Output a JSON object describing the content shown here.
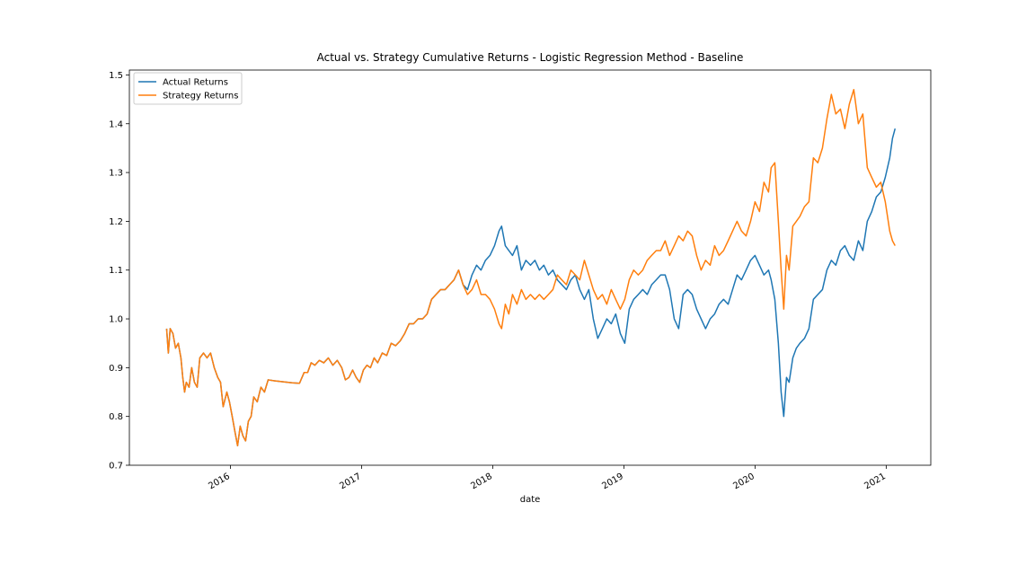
{
  "chart_data": {
    "type": "line",
    "title": "Actual vs. Strategy Cumulative Returns - Logistic Regression Method - Baseline",
    "x_label": "date",
    "xlim": [
      2015.23,
      2021.34
    ],
    "xticks": [
      2016,
      2017,
      2018,
      2019,
      2020,
      2021
    ],
    "ylim": [
      0.7,
      1.51
    ],
    "yticks": [
      0.7,
      0.8,
      0.9,
      {
        "value": 1,
        "label": "1.0"
      },
      1.1,
      1.2,
      1.3,
      1.4,
      1.5
    ],
    "legend": "upper left",
    "grid": false,
    "x": [
      2015.514,
      2015.527,
      2015.541,
      2015.562,
      2015.582,
      2015.603,
      2015.623,
      2015.637,
      2015.651,
      2015.664,
      2015.685,
      2015.705,
      2015.726,
      2015.747,
      2015.767,
      2015.795,
      2015.822,
      2015.849,
      2015.877,
      2015.904,
      2015.925,
      2015.945,
      2015.973,
      2015.993,
      2016.014,
      2016.034,
      2016.055,
      2016.075,
      2016.096,
      2016.116,
      2016.137,
      2016.158,
      2016.178,
      2016.205,
      2016.233,
      2016.26,
      2016.288,
      2016.336,
      2016.404,
      2016.473,
      2016.527,
      2016.562,
      2016.589,
      2016.616,
      2016.644,
      2016.678,
      2016.712,
      2016.747,
      2016.781,
      2016.815,
      2016.849,
      2016.877,
      2016.904,
      2016.932,
      2016.959,
      2016.986,
      2017.014,
      2017.041,
      2017.068,
      2017.096,
      2017.123,
      2017.158,
      2017.192,
      2017.226,
      2017.26,
      2017.295,
      2017.329,
      2017.363,
      2017.397,
      2017.432,
      2017.466,
      2017.5,
      2017.534,
      2017.568,
      2017.603,
      2017.637,
      2017.671,
      2017.705,
      2017.74,
      2017.774,
      2017.808,
      2017.842,
      2017.877,
      2017.911,
      2017.945,
      2017.979,
      2018.014,
      2018.048,
      2018.068,
      2018.096,
      2018.123,
      2018.151,
      2018.185,
      2018.219,
      2018.253,
      2018.288,
      2018.322,
      2018.356,
      2018.39,
      2018.425,
      2018.459,
      2018.493,
      2018.527,
      2018.562,
      2018.596,
      2018.63,
      2018.664,
      2018.699,
      2018.733,
      2018.767,
      2018.801,
      2018.836,
      2018.87,
      2018.904,
      2018.938,
      2018.973,
      2019.007,
      2019.041,
      2019.075,
      2019.11,
      2019.144,
      2019.178,
      2019.212,
      2019.247,
      2019.281,
      2019.315,
      2019.349,
      2019.384,
      2019.418,
      2019.452,
      2019.486,
      2019.521,
      2019.555,
      2019.589,
      2019.623,
      2019.658,
      2019.692,
      2019.726,
      2019.76,
      2019.795,
      2019.829,
      2019.863,
      2019.897,
      2019.932,
      2019.966,
      2020.0,
      2020.034,
      2020.068,
      2020.103,
      2020.123,
      2020.151,
      2020.178,
      2020.199,
      2020.219,
      2020.24,
      2020.26,
      2020.288,
      2020.315,
      2020.342,
      2020.377,
      2020.411,
      2020.445,
      2020.479,
      2020.514,
      2020.548,
      2020.582,
      2020.616,
      2020.651,
      2020.685,
      2020.719,
      2020.753,
      2020.788,
      2020.822,
      2020.856,
      2020.89,
      2020.925,
      2020.959,
      2020.993,
      2021.027,
      2021.048,
      2021.068
    ],
    "series": [
      {
        "name": "Actual Returns",
        "color": "#1f77b4",
        "values": [
          0.98,
          0.93,
          0.98,
          0.97,
          0.94,
          0.95,
          0.92,
          0.88,
          0.85,
          0.87,
          0.86,
          0.9,
          0.87,
          0.86,
          0.92,
          0.93,
          0.92,
          0.93,
          0.9,
          0.88,
          0.87,
          0.82,
          0.85,
          0.83,
          0.8,
          0.77,
          0.74,
          0.78,
          0.76,
          0.75,
          0.79,
          0.8,
          0.84,
          0.83,
          0.86,
          0.85,
          0.875,
          0.873,
          0.871,
          0.869,
          0.868,
          0.89,
          0.89,
          0.91,
          0.905,
          0.915,
          0.91,
          0.92,
          0.905,
          0.915,
          0.9,
          0.875,
          0.88,
          0.895,
          0.88,
          0.87,
          0.895,
          0.905,
          0.9,
          0.92,
          0.91,
          0.93,
          0.925,
          0.95,
          0.945,
          0.955,
          0.97,
          0.99,
          0.99,
          1.0,
          1.0,
          1.01,
          1.04,
          1.05,
          1.06,
          1.06,
          1.07,
          1.08,
          1.1,
          1.07,
          1.06,
          1.09,
          1.11,
          1.1,
          1.12,
          1.13,
          1.15,
          1.18,
          1.19,
          1.15,
          1.14,
          1.13,
          1.15,
          1.1,
          1.12,
          1.11,
          1.12,
          1.1,
          1.11,
          1.09,
          1.1,
          1.08,
          1.07,
          1.06,
          1.08,
          1.09,
          1.06,
          1.04,
          1.06,
          1.0,
          0.96,
          0.98,
          1.0,
          0.99,
          1.01,
          0.97,
          0.95,
          1.02,
          1.04,
          1.05,
          1.06,
          1.05,
          1.07,
          1.08,
          1.09,
          1.09,
          1.06,
          1.0,
          0.98,
          1.05,
          1.06,
          1.05,
          1.02,
          1.0,
          0.98,
          1.0,
          1.01,
          1.03,
          1.04,
          1.03,
          1.06,
          1.09,
          1.08,
          1.1,
          1.12,
          1.13,
          1.11,
          1.09,
          1.1,
          1.08,
          1.04,
          0.95,
          0.85,
          0.8,
          0.88,
          0.87,
          0.92,
          0.94,
          0.95,
          0.96,
          0.98,
          1.04,
          1.05,
          1.06,
          1.1,
          1.12,
          1.11,
          1.14,
          1.15,
          1.13,
          1.12,
          1.16,
          1.14,
          1.2,
          1.22,
          1.25,
          1.26,
          1.29,
          1.33,
          1.37,
          1.39
        ]
      },
      {
        "name": "Strategy Returns",
        "color": "#ff7f0e",
        "values": [
          0.98,
          0.93,
          0.98,
          0.97,
          0.94,
          0.95,
          0.92,
          0.88,
          0.85,
          0.87,
          0.86,
          0.9,
          0.87,
          0.86,
          0.92,
          0.93,
          0.92,
          0.93,
          0.9,
          0.88,
          0.87,
          0.82,
          0.85,
          0.83,
          0.8,
          0.77,
          0.74,
          0.78,
          0.76,
          0.75,
          0.79,
          0.8,
          0.84,
          0.83,
          0.86,
          0.85,
          0.875,
          0.873,
          0.871,
          0.869,
          0.868,
          0.89,
          0.89,
          0.91,
          0.905,
          0.915,
          0.91,
          0.92,
          0.905,
          0.915,
          0.9,
          0.875,
          0.88,
          0.895,
          0.88,
          0.87,
          0.895,
          0.905,
          0.9,
          0.92,
          0.91,
          0.93,
          0.925,
          0.95,
          0.945,
          0.955,
          0.97,
          0.99,
          0.99,
          1.0,
          1.0,
          1.01,
          1.04,
          1.05,
          1.06,
          1.06,
          1.07,
          1.08,
          1.1,
          1.07,
          1.05,
          1.06,
          1.08,
          1.05,
          1.05,
          1.04,
          1.02,
          0.99,
          0.98,
          1.03,
          1.01,
          1.05,
          1.03,
          1.06,
          1.04,
          1.05,
          1.04,
          1.05,
          1.04,
          1.05,
          1.06,
          1.09,
          1.08,
          1.07,
          1.1,
          1.09,
          1.08,
          1.12,
          1.09,
          1.06,
          1.04,
          1.05,
          1.03,
          1.06,
          1.04,
          1.02,
          1.04,
          1.08,
          1.1,
          1.09,
          1.1,
          1.12,
          1.13,
          1.14,
          1.14,
          1.16,
          1.13,
          1.15,
          1.17,
          1.16,
          1.18,
          1.17,
          1.13,
          1.1,
          1.12,
          1.11,
          1.15,
          1.13,
          1.14,
          1.16,
          1.18,
          1.2,
          1.18,
          1.17,
          1.2,
          1.24,
          1.22,
          1.28,
          1.26,
          1.31,
          1.32,
          1.2,
          1.1,
          1.02,
          1.13,
          1.1,
          1.19,
          1.2,
          1.21,
          1.23,
          1.24,
          1.33,
          1.32,
          1.35,
          1.41,
          1.46,
          1.42,
          1.43,
          1.39,
          1.44,
          1.47,
          1.4,
          1.42,
          1.31,
          1.29,
          1.27,
          1.28,
          1.24,
          1.18,
          1.16,
          1.15
        ]
      }
    ]
  }
}
